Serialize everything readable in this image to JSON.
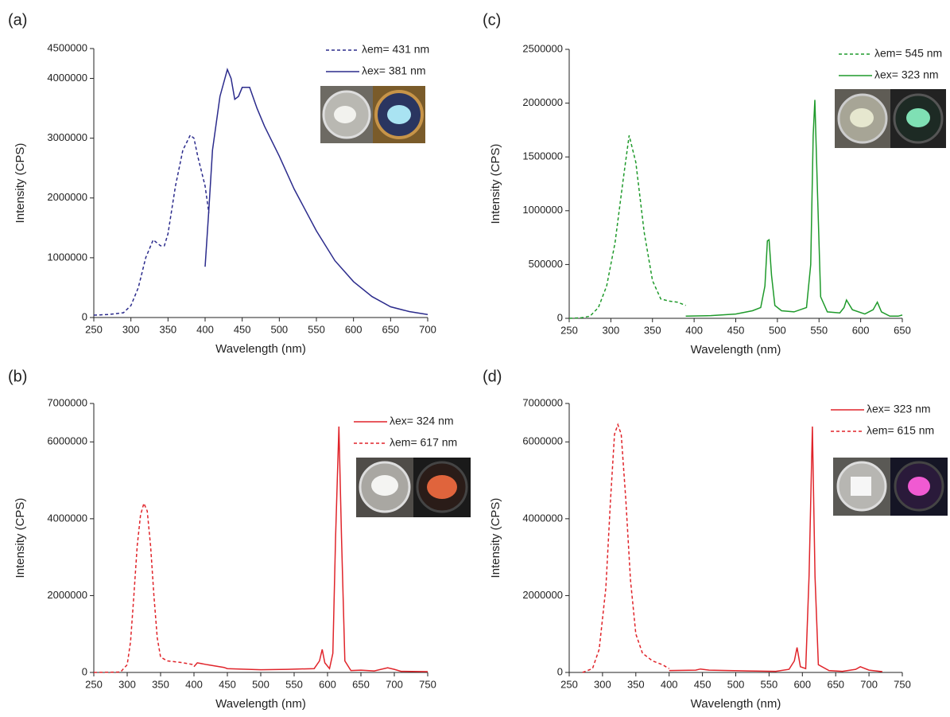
{
  "chart_data": [
    {
      "type": "line",
      "panel": "(a)",
      "xlabel": "Wavelength (nm)",
      "ylabel": "Intensity (CPS)",
      "xlim": [
        250,
        700
      ],
      "xticks": [
        250,
        300,
        350,
        400,
        450,
        500,
        550,
        600,
        650,
        700
      ],
      "ylim": [
        0,
        4500000
      ],
      "yticks": [
        0,
        1000000,
        2000000,
        3000000,
        4000000,
        4500000
      ],
      "series": [
        {
          "name": "λem= 431 nm",
          "color": "#2b2b8c",
          "style": "dashed",
          "x": [
            250,
            270,
            290,
            300,
            310,
            320,
            330,
            340,
            345,
            350,
            360,
            370,
            380,
            385,
            390,
            400,
            405
          ],
          "values": [
            40000,
            50000,
            80000,
            200000,
            500000,
            1000000,
            1300000,
            1200000,
            1200000,
            1400000,
            2200000,
            2800000,
            3050000,
            3000000,
            2700000,
            2200000,
            1750000
          ]
        },
        {
          "name": "λex= 381 nm",
          "color": "#2b2b8c",
          "style": "solid",
          "x": [
            400,
            405,
            410,
            420,
            430,
            435,
            440,
            445,
            450,
            460,
            470,
            480,
            500,
            520,
            550,
            575,
            600,
            625,
            650,
            675,
            700
          ],
          "values": [
            850000,
            1800000,
            2800000,
            3700000,
            4150000,
            4000000,
            3650000,
            3700000,
            3850000,
            3850000,
            3500000,
            3200000,
            2700000,
            2150000,
            1450000,
            950000,
            600000,
            350000,
            180000,
            100000,
            50000
          ]
        }
      ]
    },
    {
      "type": "line",
      "panel": "(c)",
      "xlabel": "Wavelength (nm)",
      "ylabel": "Intensity (CPS)",
      "xlim": [
        250,
        650
      ],
      "xticks": [
        250,
        300,
        350,
        400,
        450,
        500,
        550,
        600,
        650
      ],
      "ylim": [
        0,
        2500000
      ],
      "yticks": [
        0,
        500000,
        1000000,
        1500000,
        2000000,
        2500000
      ],
      "series": [
        {
          "name": "λem= 545 nm",
          "color": "#1f9a2b",
          "style": "dashed",
          "x": [
            250,
            265,
            275,
            285,
            295,
            305,
            315,
            322,
            330,
            340,
            350,
            360,
            370,
            380,
            390
          ],
          "values": [
            0,
            5000,
            20000,
            100000,
            300000,
            700000,
            1300000,
            1700000,
            1450000,
            800000,
            350000,
            180000,
            160000,
            150000,
            120000
          ]
        },
        {
          "name": "λex= 323 nm",
          "color": "#1f9a2b",
          "style": "solid",
          "x": [
            390,
            420,
            450,
            470,
            480,
            485,
            488,
            490,
            493,
            497,
            505,
            520,
            535,
            540,
            543,
            545,
            548,
            552,
            560,
            575,
            580,
            583,
            590,
            605,
            615,
            620,
            625,
            635,
            645,
            650
          ],
          "values": [
            20000,
            25000,
            40000,
            70000,
            100000,
            300000,
            720000,
            730000,
            400000,
            120000,
            70000,
            60000,
            100000,
            500000,
            1700000,
            2030000,
            1200000,
            200000,
            60000,
            50000,
            100000,
            170000,
            80000,
            40000,
            80000,
            150000,
            60000,
            20000,
            20000,
            30000
          ]
        }
      ]
    },
    {
      "type": "line",
      "panel": "(b)",
      "xlabel": "Wavelength (nm)",
      "ylabel": "Intensity (CPS)",
      "xlim": [
        250,
        750
      ],
      "xticks": [
        250,
        300,
        350,
        400,
        450,
        500,
        550,
        600,
        650,
        700,
        750
      ],
      "ylim": [
        0,
        7000000
      ],
      "yticks": [
        0,
        2000000,
        4000000,
        6000000,
        7000000
      ],
      "series": [
        {
          "name": "λex= 324 nm",
          "color": "#e0242a",
          "style": "solid",
          "x": [
            400,
            405,
            420,
            445,
            450,
            500,
            540,
            580,
            588,
            592,
            596,
            603,
            608,
            612,
            617,
            621,
            626,
            635,
            650,
            670,
            690,
            700,
            710,
            750
          ],
          "values": [
            150000,
            250000,
            200000,
            130000,
            100000,
            70000,
            80000,
            100000,
            300000,
            600000,
            250000,
            100000,
            500000,
            3500000,
            6400000,
            3500000,
            300000,
            50000,
            60000,
            40000,
            120000,
            80000,
            30000,
            20000
          ]
        },
        {
          "name": "λem= 617 nm",
          "color": "#e0242a",
          "style": "dashed",
          "x": [
            250,
            290,
            300,
            305,
            310,
            315,
            320,
            325,
            330,
            335,
            340,
            345,
            350,
            360,
            380,
            400
          ],
          "values": [
            0,
            10000,
            200000,
            800000,
            2000000,
            3300000,
            4100000,
            4400000,
            4200000,
            3300000,
            2000000,
            900000,
            400000,
            300000,
            260000,
            200000
          ]
        }
      ]
    },
    {
      "type": "line",
      "panel": "(d)",
      "xlabel": "Wavelength (nm)",
      "ylabel": "Intensity (CPS)",
      "xlim": [
        250,
        750
      ],
      "xticks": [
        250,
        300,
        350,
        400,
        450,
        500,
        550,
        600,
        650,
        700,
        750
      ],
      "ylim": [
        0,
        7000000
      ],
      "yticks": [
        0,
        2000000,
        4000000,
        6000000,
        7000000
      ],
      "series": [
        {
          "name": "λex= 323 nm",
          "color": "#e0242a",
          "style": "solid",
          "x": [
            400,
            440,
            447,
            460,
            520,
            560,
            580,
            588,
            592,
            597,
            605,
            610,
            615,
            619,
            624,
            640,
            660,
            680,
            687,
            700,
            720
          ],
          "values": [
            50000,
            60000,
            90000,
            60000,
            40000,
            30000,
            80000,
            300000,
            650000,
            150000,
            100000,
            2500000,
            6400000,
            2500000,
            200000,
            50000,
            30000,
            80000,
            150000,
            60000,
            20000
          ]
        },
        {
          "name": "λem= 615 nm",
          "color": "#e0242a",
          "style": "dashed",
          "x": [
            270,
            285,
            295,
            305,
            312,
            318,
            323,
            328,
            335,
            342,
            350,
            360,
            375,
            390,
            400
          ],
          "values": [
            0,
            100000,
            600000,
            2200000,
            4500000,
            6200000,
            6450000,
            6200000,
            4500000,
            2400000,
            1000000,
            500000,
            300000,
            200000,
            100000
          ]
        }
      ]
    }
  ]
}
